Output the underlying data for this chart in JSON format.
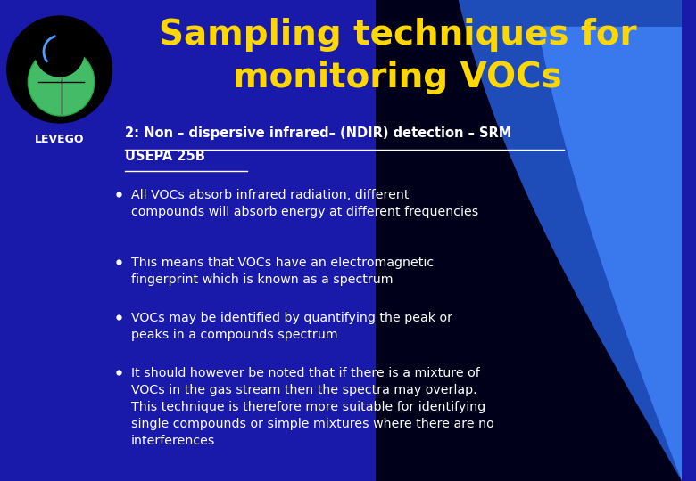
{
  "title_line1": "Sampling techniques for",
  "title_line2": "monitoring VOCs",
  "title_color": "#FFD700",
  "subtitle_line1": "2: Non – dispersive infrared– (NDIR) detection – SRM",
  "subtitle_line2": "USEPA 25B",
  "subtitle_color": "#FFFFFF",
  "bg_color": "#1a1aaa",
  "bullet_color": "#FFFFFF",
  "bullet_points": [
    "All VOCs absorb infrared radiation, different\ncompounds will absorb energy at different frequencies",
    "This means that VOCs have an electromagnetic\nfingerprint which is known as a spectrum",
    "VOCs may be identified by quantifying the peak or\npeaks in a compounds spectrum",
    "It should however be noted that if there is a mixture of\nVOCs in the gas stream then the spectra may overlap.\nThis technique is therefore more suitable for identifying\nsingle compounds or simple mixtures where there are no\ninterferences"
  ],
  "logo_text": "LEVEGO",
  "logo_text_color": "#FFFFFF",
  "figsize": [
    7.8,
    5.4
  ],
  "dpi": 100
}
